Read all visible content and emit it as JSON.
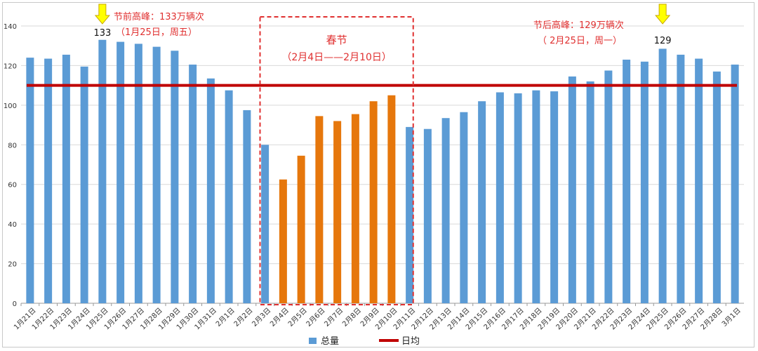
{
  "chart_data": {
    "type": "bar",
    "categories": [
      "1月21日",
      "1月22日",
      "1月23日",
      "1月24日",
      "1月25日",
      "1月26日",
      "1月27日",
      "1月28日",
      "1月29日",
      "1月30日",
      "1月31日",
      "2月1日",
      "2月2日",
      "2月3日",
      "2月4日",
      "2月5日",
      "2月6日",
      "2月7日",
      "2月8日",
      "2月9日",
      "2月10日",
      "2月11日",
      "2月12日",
      "2月13日",
      "2月14日",
      "2月15日",
      "2月16日",
      "2月17日",
      "2月18日",
      "2月19日",
      "2月20日",
      "2月21日",
      "2月22日",
      "2月23日",
      "2月24日",
      "2月25日",
      "2月26日",
      "2月27日",
      "2月28日",
      "3月1日"
    ],
    "series": [
      {
        "name": "总量",
        "values": [
          124,
          123.5,
          125.5,
          119.5,
          133,
          132,
          131,
          129.5,
          127.5,
          120.5,
          113.5,
          107.5,
          97.5,
          80,
          62.5,
          74.5,
          94.5,
          92,
          95.5,
          102,
          105,
          89,
          88,
          93.5,
          96.5,
          102,
          106.5,
          106,
          107.5,
          107,
          114.5,
          112,
          117.5,
          123,
          122,
          128.5,
          125.5,
          123.5,
          117,
          120.5
        ],
        "color": "#5b9bd5",
        "highlight_color": "#e6770c",
        "highlight_range": [
          "2月4日",
          "2月10日"
        ]
      },
      {
        "name": "日均",
        "type": "line",
        "value": 110,
        "color": "#c00000"
      }
    ],
    "yticks": [
      "0",
      "20",
      "40",
      "60",
      "80",
      "100",
      "120",
      "140"
    ],
    "ylim": [
      0,
      140
    ],
    "grid": true,
    "legend": "bottom",
    "annotations": {
      "peak_before_label": "133",
      "peak_before_line1": "节前高峰：133万辆次",
      "peak_before_line2": "（1月25日，周五）",
      "peak_after_label": "129",
      "peak_after_line1": "节后高峰：129万辆次",
      "peak_after_line2": "（ 2月25日，周一）",
      "holiday_title": "春节",
      "holiday_range": "（2月4日——2月10日）"
    },
    "arrow_color": "#ffff00"
  }
}
